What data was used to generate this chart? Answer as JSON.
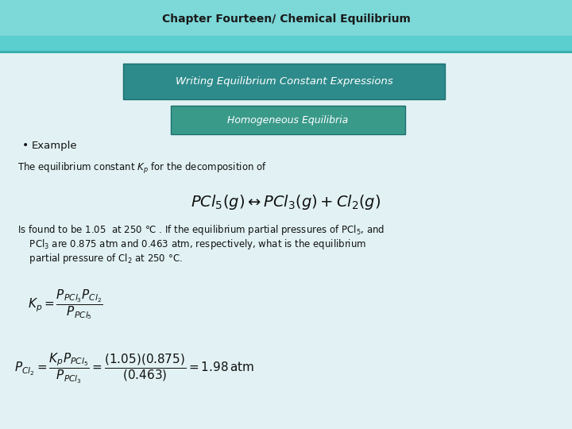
{
  "title": "Chapter Fourteen/ Chemical Equilibrium",
  "title_fontsize": 10,
  "header_bg": "#4BBFBF",
  "header_top_bg": "#7DD8D8",
  "box1_text": "Writing Equilibrium Constant Expressions",
  "box1_color": "#2E8B8B",
  "box2_text": "Homogeneous Equilibria",
  "box2_color": "#3A9A8A",
  "bullet_text": "Example",
  "slide_bg": "#D8EEF0",
  "body_bg": "#E8F5F7",
  "text_line1": "The equilibrium constant $K_p$ for the decomposition of",
  "equation": "$PCl_5(g) \\leftrightarrow PCl_3(g) + Cl_2(g)$",
  "text_line2": "Is found to be 1.05  at 250 °C . If the equilibrium partial pressures of PCl$_5$, and",
  "text_line3": "    PCl$_3$ are 0.875 atm and 0.463 atm, respectively, what is the equilibrium",
  "text_line4": "    partial pressure of Cl$_2$ at 250 °C.",
  "kp_formula": "$K_p = \\dfrac{P_{PCl_3}P_{Cl_2}}{P_{PCl_5}}$",
  "pcl_formula": "$P_{Cl_2} = \\dfrac{K_p P_{PCl_5}}{P_{PCl_3}} = \\dfrac{(1.05)(0.875)}{(0.463)} = 1.98\\,\\mathrm{atm}$",
  "font_color": "#111111",
  "body_text_size": 8.5,
  "eq_text_size": 14,
  "formula_text_size": 11
}
